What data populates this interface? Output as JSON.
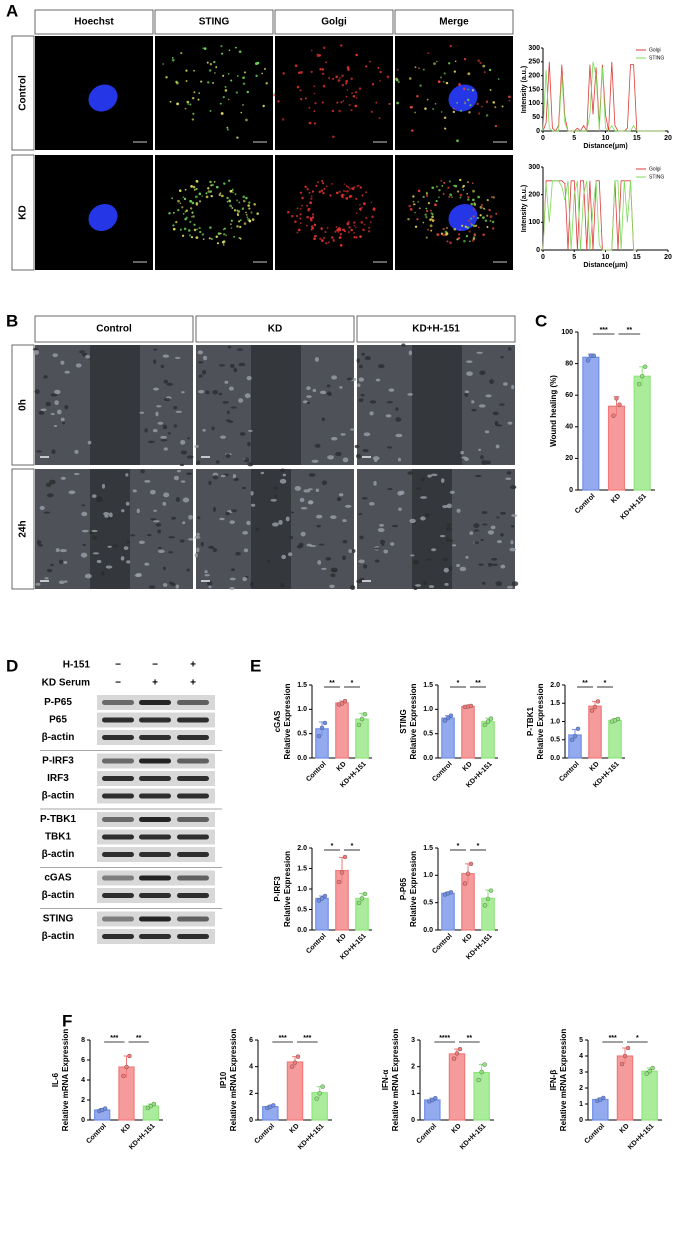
{
  "panels": {
    "A": {
      "label": "A",
      "columns": [
        "Hoechst",
        "STING",
        "Golgi",
        "Merge"
      ],
      "rows": [
        "Control",
        "KD"
      ]
    },
    "B": {
      "label": "B",
      "columns": [
        "Control",
        "KD",
        "KD+H-151"
      ],
      "rows": [
        "0h",
        "24h"
      ]
    },
    "C": {
      "label": "C"
    },
    "D": {
      "label": "D",
      "treatments": [
        {
          "name": "H-151",
          "marks": [
            "−",
            "−",
            "+"
          ]
        },
        {
          "name": "KD Serum",
          "marks": [
            "−",
            "+",
            "+"
          ]
        }
      ],
      "blots": [
        [
          "P-P65",
          "P65",
          "β-actin"
        ],
        [
          "P-IRF3",
          "IRF3",
          "β-actin"
        ],
        [
          "P-TBK1",
          "TBK1",
          "β-actin"
        ],
        [
          "cGAS",
          "β-actin"
        ],
        [
          "STING",
          "β-actin"
        ]
      ]
    },
    "E": {
      "label": "E"
    },
    "F": {
      "label": "F"
    }
  },
  "chart_data": [
    {
      "type": "line",
      "xlabel": "Distance(μm)",
      "ylabel": "Intensity (a.u.)",
      "xlim": [
        0,
        20
      ],
      "xticks": [
        0,
        5,
        10,
        15,
        20
      ],
      "ylim": [
        0,
        300
      ],
      "yticks": [
        0,
        50,
        100,
        150,
        200,
        250,
        300
      ],
      "x": [
        0,
        0.5,
        1,
        1.5,
        2,
        2.5,
        3,
        3.5,
        4,
        4.5,
        5,
        5.5,
        6,
        6.5,
        7,
        7.5,
        8,
        8.5,
        9,
        9.5,
        10,
        10.5,
        11,
        11.5,
        12,
        12.5,
        13,
        13.5,
        14,
        14.5,
        15,
        15.5,
        16,
        16.5,
        17,
        17.5,
        18,
        18.5,
        19,
        19.5
      ],
      "series": [
        {
          "name": "Golgi",
          "color": "#e03a3a",
          "values": [
            0,
            30,
            250,
            10,
            0,
            20,
            240,
            50,
            0,
            0,
            0,
            10,
            0,
            20,
            0,
            240,
            60,
            230,
            20,
            240,
            60,
            0,
            250,
            20,
            0,
            0,
            0,
            10,
            240,
            240,
            0,
            0,
            0,
            0,
            0,
            0,
            0,
            0,
            0,
            0
          ]
        },
        {
          "name": "STING",
          "color": "#7ddc5a",
          "values": [
            0,
            220,
            10,
            0,
            0,
            0,
            200,
            30,
            0,
            0,
            0,
            0,
            0,
            0,
            0,
            60,
            250,
            200,
            0,
            230,
            10,
            0,
            20,
            0,
            0,
            0,
            0,
            0,
            0,
            20,
            0,
            0,
            0,
            0,
            0,
            0,
            0,
            0,
            0,
            0
          ]
        }
      ]
    },
    {
      "type": "line",
      "xlabel": "Distance(μm)",
      "ylabel": "Intensity (a.u.)",
      "xlim": [
        0,
        20
      ],
      "xticks": [
        0,
        5,
        10,
        15,
        20
      ],
      "ylim": [
        0,
        300
      ],
      "yticks": [
        0,
        100,
        200,
        300
      ],
      "x": [
        0,
        0.5,
        1,
        1.5,
        2,
        2.5,
        3,
        3.5,
        4,
        4.5,
        5,
        5.5,
        6,
        6.5,
        7,
        7.5,
        8,
        8.5,
        9,
        9.5,
        10,
        10.5,
        11,
        11.5,
        12,
        12.5,
        13,
        13.5,
        14,
        14.5,
        15
      ],
      "series": [
        {
          "name": "Golgi",
          "color": "#e03a3a",
          "values": [
            0,
            250,
            250,
            250,
            250,
            250,
            250,
            240,
            0,
            250,
            250,
            0,
            250,
            250,
            0,
            250,
            0,
            250,
            250,
            0,
            0,
            0,
            0,
            250,
            0,
            250,
            250,
            250,
            250,
            0,
            0
          ]
        },
        {
          "name": "STING",
          "color": "#7ddc5a",
          "values": [
            0,
            240,
            100,
            250,
            250,
            250,
            230,
            180,
            250,
            0,
            200,
            250,
            0,
            200,
            250,
            0,
            150,
            250,
            20,
            0,
            0,
            0,
            0,
            250,
            250,
            0,
            250,
            100,
            250,
            0,
            0
          ]
        }
      ]
    },
    {
      "type": "bar",
      "ylabel": [
        "Wound healing (%)"
      ],
      "categories": [
        "Control",
        "KD",
        "KD+H-151"
      ],
      "colors": [
        "#6f8fe8",
        "#f27a7a",
        "#8ee67a"
      ],
      "ylim": [
        0,
        100
      ],
      "yticks": [
        0,
        20,
        40,
        60,
        80,
        100
      ],
      "values": [
        84,
        53,
        72
      ],
      "errors": [
        2,
        6,
        6
      ],
      "points": [
        [
          82,
          85,
          85
        ],
        [
          47,
          58,
          54
        ],
        [
          67,
          72,
          78
        ]
      ],
      "annotations": [
        "***",
        "**"
      ]
    },
    {
      "type": "bar",
      "ylabel": [
        "cGAS",
        "Relative Expression"
      ],
      "categories": [
        "Control",
        "KD",
        "KD+H-151"
      ],
      "colors": [
        "#6f8fe8",
        "#f27a7a",
        "#8ee67a"
      ],
      "ylim": [
        0,
        1.5
      ],
      "yticks": [
        {
          "value": 0,
          "label": "0.0"
        },
        {
          "value": 0.5,
          "label": "0.5"
        },
        {
          "value": 1,
          "label": "1.0"
        },
        {
          "value": 1.5,
          "label": "1.5"
        }
      ],
      "values": [
        0.6,
        1.13,
        0.8
      ],
      "errors": [
        0.14,
        0.04,
        0.12
      ],
      "points": [
        [
          0.45,
          0.62,
          0.72
        ],
        [
          1.1,
          1.12,
          1.17
        ],
        [
          0.68,
          0.8,
          0.9
        ]
      ],
      "annotations": [
        "**",
        "*"
      ]
    },
    {
      "type": "bar",
      "ylabel": [
        "STING",
        "Relative Expression"
      ],
      "categories": [
        "Control",
        "KD",
        "KD+H-151"
      ],
      "colors": [
        "#6f8fe8",
        "#f27a7a",
        "#8ee67a"
      ],
      "ylim": [
        0,
        1.5
      ],
      "yticks": [
        {
          "value": 0,
          "label": "0.0"
        },
        {
          "value": 0.5,
          "label": "0.5"
        },
        {
          "value": 1,
          "label": "1.0"
        },
        {
          "value": 1.5,
          "label": "1.5"
        }
      ],
      "values": [
        0.82,
        1.06,
        0.75
      ],
      "errors": [
        0.05,
        0.01,
        0.07
      ],
      "points": [
        [
          0.77,
          0.82,
          0.87
        ],
        [
          1.05,
          1.06,
          1.07
        ],
        [
          0.68,
          0.75,
          0.81
        ]
      ],
      "annotations": [
        "*",
        "**"
      ]
    },
    {
      "type": "bar",
      "ylabel": [
        "P-TBK1",
        "Relative Expression"
      ],
      "categories": [
        "Control",
        "KD",
        "KD+H-151"
      ],
      "colors": [
        "#6f8fe8",
        "#f27a7a",
        "#8ee67a"
      ],
      "ylim": [
        0,
        2
      ],
      "yticks": [
        {
          "value": 0,
          "label": "0.0"
        },
        {
          "value": 0.5,
          "label": "0.5"
        },
        {
          "value": 1,
          "label": "1.0"
        },
        {
          "value": 1.5,
          "label": "1.5"
        },
        {
          "value": 2,
          "label": "2.0"
        }
      ],
      "values": [
        0.63,
        1.42,
        1.03
      ],
      "errors": [
        0.15,
        0.13,
        0.05
      ],
      "points": [
        [
          0.5,
          0.6,
          0.8
        ],
        [
          1.3,
          1.4,
          1.55
        ],
        [
          1.0,
          1.03,
          1.07
        ]
      ],
      "annotations": [
        "**",
        "*"
      ]
    },
    {
      "type": "bar",
      "ylabel": [
        "P-IRF3",
        "Relative Expression"
      ],
      "categories": [
        "Control",
        "KD",
        "KD+H-151"
      ],
      "colors": [
        "#6f8fe8",
        "#f27a7a",
        "#8ee67a"
      ],
      "ylim": [
        0,
        2
      ],
      "yticks": [
        {
          "value": 0,
          "label": "0.0"
        },
        {
          "value": 0.5,
          "label": "0.5"
        },
        {
          "value": 1,
          "label": "1.0"
        },
        {
          "value": 1.5,
          "label": "1.5"
        },
        {
          "value": 2,
          "label": "2.0"
        }
      ],
      "values": [
        0.77,
        1.45,
        0.77
      ],
      "errors": [
        0.06,
        0.32,
        0.12
      ],
      "points": [
        [
          0.72,
          0.77,
          0.83
        ],
        [
          1.17,
          1.4,
          1.78
        ],
        [
          0.66,
          0.77,
          0.88
        ]
      ],
      "annotations": [
        "*",
        "*"
      ]
    },
    {
      "type": "bar",
      "ylabel": [
        "P-P65",
        "Relative Expression"
      ],
      "categories": [
        "Control",
        "KD",
        "KD+H-151"
      ],
      "colors": [
        "#6f8fe8",
        "#f27a7a",
        "#8ee67a"
      ],
      "ylim": [
        0,
        1.5
      ],
      "yticks": [
        {
          "value": 0,
          "label": "0.0"
        },
        {
          "value": 0.5,
          "label": "0.5"
        },
        {
          "value": 1,
          "label": "1.0"
        },
        {
          "value": 1.5,
          "label": "1.5"
        }
      ],
      "values": [
        0.67,
        1.03,
        0.58
      ],
      "errors": [
        0.02,
        0.18,
        0.15
      ],
      "points": [
        [
          0.65,
          0.67,
          0.69
        ],
        [
          0.85,
          1.03,
          1.21
        ],
        [
          0.45,
          0.57,
          0.72
        ]
      ],
      "annotations": [
        "*",
        "*"
      ]
    },
    {
      "type": "bar",
      "ylabel": [
        "IL-6",
        "Relative mRNA Expression"
      ],
      "categories": [
        "Control",
        "KD",
        "KD+H-151"
      ],
      "colors": [
        "#6f8fe8",
        "#f27a7a",
        "#8ee67a"
      ],
      "ylim": [
        0,
        8
      ],
      "yticks": [
        0,
        2,
        4,
        6,
        8
      ],
      "values": [
        1.0,
        5.3,
        1.4
      ],
      "errors": [
        0.15,
        1.1,
        0.2
      ],
      "points": [
        [
          0.9,
          1.0,
          1.15
        ],
        [
          4.4,
          5.3,
          6.4
        ],
        [
          1.2,
          1.4,
          1.6
        ]
      ],
      "annotations": [
        "***",
        "**"
      ]
    },
    {
      "type": "bar",
      "ylabel": [
        "IP10",
        "Relative mRNA Expression"
      ],
      "categories": [
        "Control",
        "KD",
        "KD+H-151"
      ],
      "colors": [
        "#6f8fe8",
        "#f27a7a",
        "#8ee67a"
      ],
      "ylim": [
        0,
        6
      ],
      "yticks": [
        0,
        2,
        4,
        6
      ],
      "values": [
        1.0,
        4.35,
        2.05
      ],
      "errors": [
        0.1,
        0.4,
        0.45
      ],
      "points": [
        [
          0.9,
          1.0,
          1.1
        ],
        [
          4.0,
          4.3,
          4.75
        ],
        [
          1.6,
          2.0,
          2.5
        ]
      ],
      "annotations": [
        "***",
        "***"
      ]
    },
    {
      "type": "bar",
      "ylabel": [
        "IFN-α",
        "Relative mRNA Expression"
      ],
      "categories": [
        "Control",
        "KD",
        "KD+H-151"
      ],
      "colors": [
        "#6f8fe8",
        "#f27a7a",
        "#8ee67a"
      ],
      "ylim": [
        0,
        3
      ],
      "yticks": [
        0,
        1,
        2,
        3
      ],
      "values": [
        0.75,
        2.48,
        1.78
      ],
      "errors": [
        0.07,
        0.18,
        0.3
      ],
      "points": [
        [
          0.7,
          0.75,
          0.82
        ],
        [
          2.3,
          2.5,
          2.66
        ],
        [
          1.5,
          1.8,
          2.08
        ]
      ],
      "annotations": [
        "****",
        "**"
      ]
    },
    {
      "type": "bar",
      "ylabel": [
        "IFN-β",
        "Relative mRNA Expression"
      ],
      "categories": [
        "Control",
        "KD",
        "KD+H-151"
      ],
      "colors": [
        "#6f8fe8",
        "#f27a7a",
        "#8ee67a"
      ],
      "ylim": [
        0,
        5
      ],
      "yticks": [
        0,
        1,
        2,
        3,
        4,
        5
      ],
      "values": [
        1.28,
        4.0,
        3.05
      ],
      "errors": [
        0.1,
        0.5,
        0.2
      ],
      "points": [
        [
          1.2,
          1.28,
          1.38
        ],
        [
          3.5,
          4.0,
          4.5
        ],
        [
          2.9,
          3.05,
          3.25
        ]
      ],
      "annotations": [
        "***",
        "*"
      ]
    }
  ]
}
